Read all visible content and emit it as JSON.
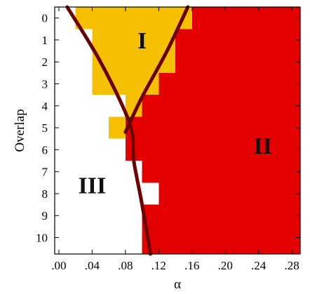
{
  "chart_data": {
    "type": "heatmap",
    "xlabel": "α",
    "ylabel": "Overlap",
    "x_ticks": [
      ".00",
      ".04",
      ".08",
      ".12",
      ".16",
      ".20",
      ".24",
      ".28"
    ],
    "x_tick_values": [
      0.0,
      0.04,
      0.08,
      0.12,
      0.16,
      0.2,
      0.24,
      0.28
    ],
    "y_ticks": [
      "0",
      "1",
      "2",
      "3",
      "4",
      "5",
      "6",
      "7",
      "8",
      "9",
      "10"
    ],
    "y_tick_values": [
      0,
      1,
      2,
      3,
      4,
      5,
      6,
      7,
      8,
      9,
      10
    ],
    "xlim": [
      -0.005,
      0.29
    ],
    "ylim": [
      -0.5,
      10.75
    ],
    "y_inverted": true,
    "grid": false,
    "colors": {
      "I": "#f5c000",
      "II": "#e50000",
      "III": "#ffffff",
      "boundary": "#6b0000"
    },
    "cell_width": 0.02,
    "phase_boundaries": [
      {
        "overlap": 0,
        "I_start": 0.02,
        "II_start": 0.16
      },
      {
        "overlap": 1,
        "I_start": 0.04,
        "II_start": 0.14
      },
      {
        "overlap": 2,
        "I_start": 0.04,
        "II_start": 0.14
      },
      {
        "overlap": 3,
        "I_start": 0.04,
        "II_start": 0.12
      },
      {
        "overlap": 4,
        "I_start": 0.08,
        "II_start": 0.1
      },
      {
        "overlap": 5,
        "I_start": 0.06,
        "II_start": 0.08
      },
      {
        "overlap": 6,
        "I_start": 0.08,
        "II_start": 0.08
      },
      {
        "overlap": 7,
        "I_start": 0.1,
        "II_start": 0.1
      },
      {
        "overlap": 8,
        "I_start": 0.12,
        "II_start": 0.12
      },
      {
        "overlap": 9,
        "I_start": 0.1,
        "II_start": 0.1
      },
      {
        "overlap": 10,
        "I_start": 0.1,
        "II_start": 0.1
      }
    ],
    "curves": [
      {
        "points": [
          [
            0.01,
            -0.5
          ],
          [
            0.05,
            2.0
          ],
          [
            0.085,
            4.8
          ],
          [
            0.09,
            6.5
          ],
          [
            0.1,
            8.5
          ],
          [
            0.11,
            10.75
          ]
        ]
      },
      {
        "points": [
          [
            0.155,
            -0.5
          ],
          [
            0.13,
            1.5
          ],
          [
            0.1,
            3.6
          ],
          [
            0.08,
            5.2
          ]
        ]
      }
    ],
    "region_labels": [
      {
        "text": "I",
        "x": 0.1,
        "y": 1.0
      },
      {
        "text": "II",
        "x": 0.245,
        "y": 5.8
      },
      {
        "text": "III",
        "x": 0.04,
        "y": 7.6
      }
    ]
  }
}
